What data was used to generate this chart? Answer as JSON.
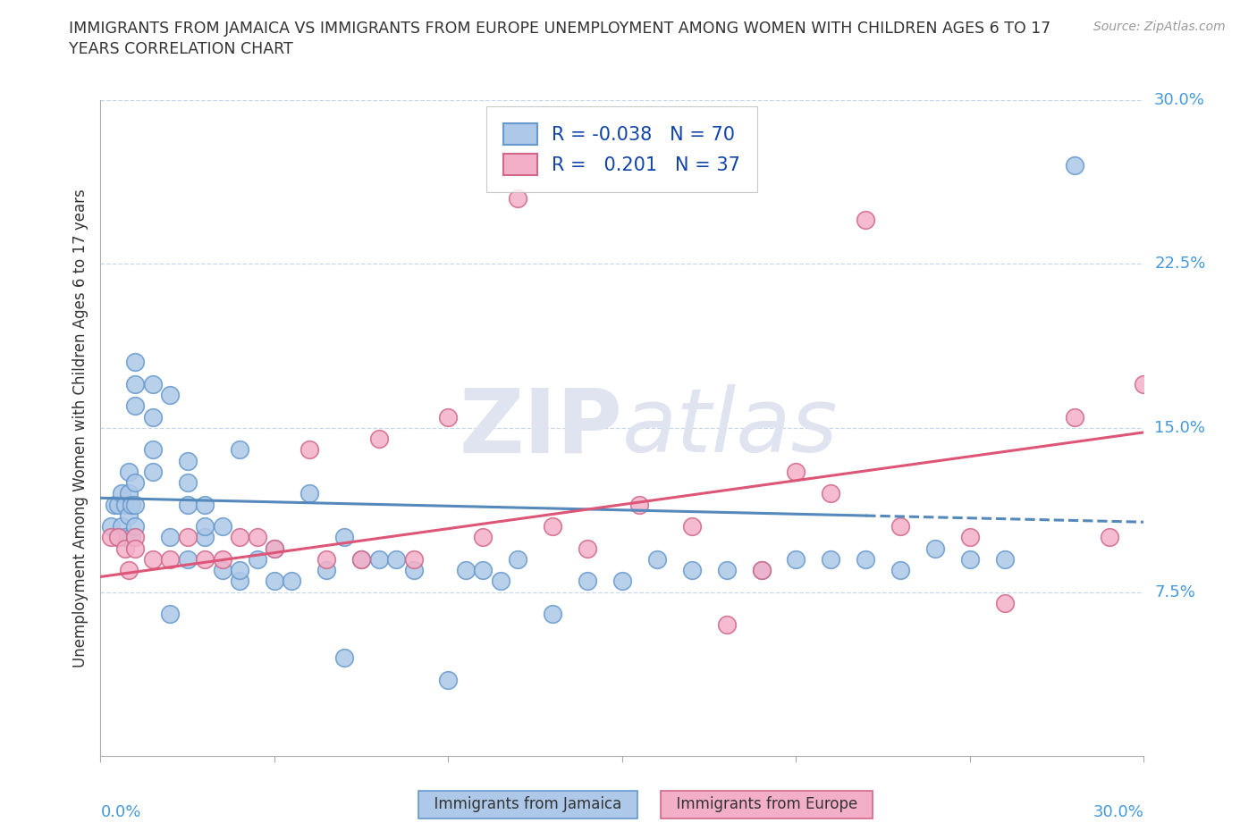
{
  "title_line1": "IMMIGRANTS FROM JAMAICA VS IMMIGRANTS FROM EUROPE UNEMPLOYMENT AMONG WOMEN WITH CHILDREN AGES 6 TO 17",
  "title_line2": "YEARS CORRELATION CHART",
  "source": "Source: ZipAtlas.com",
  "ylabel": "Unemployment Among Women with Children Ages 6 to 17 years",
  "x_min": 0.0,
  "x_max": 0.3,
  "y_min": 0.0,
  "y_max": 0.3,
  "yticks": [
    0.075,
    0.15,
    0.225,
    0.3
  ],
  "ytick_labels": [
    "7.5%",
    "15.0%",
    "22.5%",
    "30.0%"
  ],
  "xticks": [
    0.0,
    0.05,
    0.1,
    0.15,
    0.2,
    0.25,
    0.3
  ],
  "xtick_labels_bottom": [
    "0.0%",
    "",
    "",
    "",
    "",
    "",
    "30.0%"
  ],
  "R_jamaica": -0.038,
  "N_jamaica": 70,
  "R_europe": 0.201,
  "N_europe": 37,
  "color_jamaica": "#adc8e8",
  "color_europe": "#f4afc8",
  "edgecolor_jamaica": "#6699cc",
  "edgecolor_europe": "#d06888",
  "line_color_jamaica": "#5588bb",
  "line_color_europe": "#dd5577",
  "watermark_color": "#e0e4f0",
  "jamaica_line_start_y": 0.118,
  "jamaica_line_end_y": 0.107,
  "europe_line_start_y": 0.082,
  "europe_line_end_y": 0.148,
  "jamaica_x": [
    0.003,
    0.004,
    0.005,
    0.005,
    0.006,
    0.006,
    0.007,
    0.007,
    0.008,
    0.008,
    0.008,
    0.009,
    0.009,
    0.01,
    0.01,
    0.01,
    0.01,
    0.01,
    0.01,
    0.015,
    0.015,
    0.015,
    0.015,
    0.02,
    0.02,
    0.02,
    0.025,
    0.025,
    0.025,
    0.025,
    0.03,
    0.03,
    0.03,
    0.035,
    0.035,
    0.04,
    0.04,
    0.04,
    0.045,
    0.05,
    0.05,
    0.055,
    0.06,
    0.065,
    0.07,
    0.07,
    0.075,
    0.08,
    0.085,
    0.09,
    0.1,
    0.105,
    0.11,
    0.115,
    0.12,
    0.13,
    0.14,
    0.15,
    0.16,
    0.17,
    0.18,
    0.19,
    0.2,
    0.21,
    0.22,
    0.23,
    0.24,
    0.25,
    0.26,
    0.28
  ],
  "jamaica_y": [
    0.105,
    0.115,
    0.1,
    0.115,
    0.105,
    0.12,
    0.115,
    0.1,
    0.11,
    0.12,
    0.13,
    0.1,
    0.115,
    0.105,
    0.115,
    0.125,
    0.16,
    0.17,
    0.18,
    0.13,
    0.14,
    0.155,
    0.17,
    0.065,
    0.1,
    0.165,
    0.09,
    0.115,
    0.125,
    0.135,
    0.1,
    0.105,
    0.115,
    0.085,
    0.105,
    0.08,
    0.085,
    0.14,
    0.09,
    0.08,
    0.095,
    0.08,
    0.12,
    0.085,
    0.045,
    0.1,
    0.09,
    0.09,
    0.09,
    0.085,
    0.035,
    0.085,
    0.085,
    0.08,
    0.09,
    0.065,
    0.08,
    0.08,
    0.09,
    0.085,
    0.085,
    0.085,
    0.09,
    0.09,
    0.09,
    0.085,
    0.095,
    0.09,
    0.09,
    0.27
  ],
  "europe_x": [
    0.003,
    0.005,
    0.007,
    0.008,
    0.01,
    0.01,
    0.015,
    0.02,
    0.025,
    0.03,
    0.035,
    0.04,
    0.045,
    0.05,
    0.06,
    0.065,
    0.075,
    0.08,
    0.09,
    0.1,
    0.11,
    0.12,
    0.13,
    0.14,
    0.155,
    0.17,
    0.18,
    0.19,
    0.2,
    0.21,
    0.22,
    0.23,
    0.25,
    0.26,
    0.28,
    0.29,
    0.3
  ],
  "europe_y": [
    0.1,
    0.1,
    0.095,
    0.085,
    0.1,
    0.095,
    0.09,
    0.09,
    0.1,
    0.09,
    0.09,
    0.1,
    0.1,
    0.095,
    0.14,
    0.09,
    0.09,
    0.145,
    0.09,
    0.155,
    0.1,
    0.255,
    0.105,
    0.095,
    0.115,
    0.105,
    0.06,
    0.085,
    0.13,
    0.12,
    0.245,
    0.105,
    0.1,
    0.07,
    0.155,
    0.1,
    0.17
  ]
}
